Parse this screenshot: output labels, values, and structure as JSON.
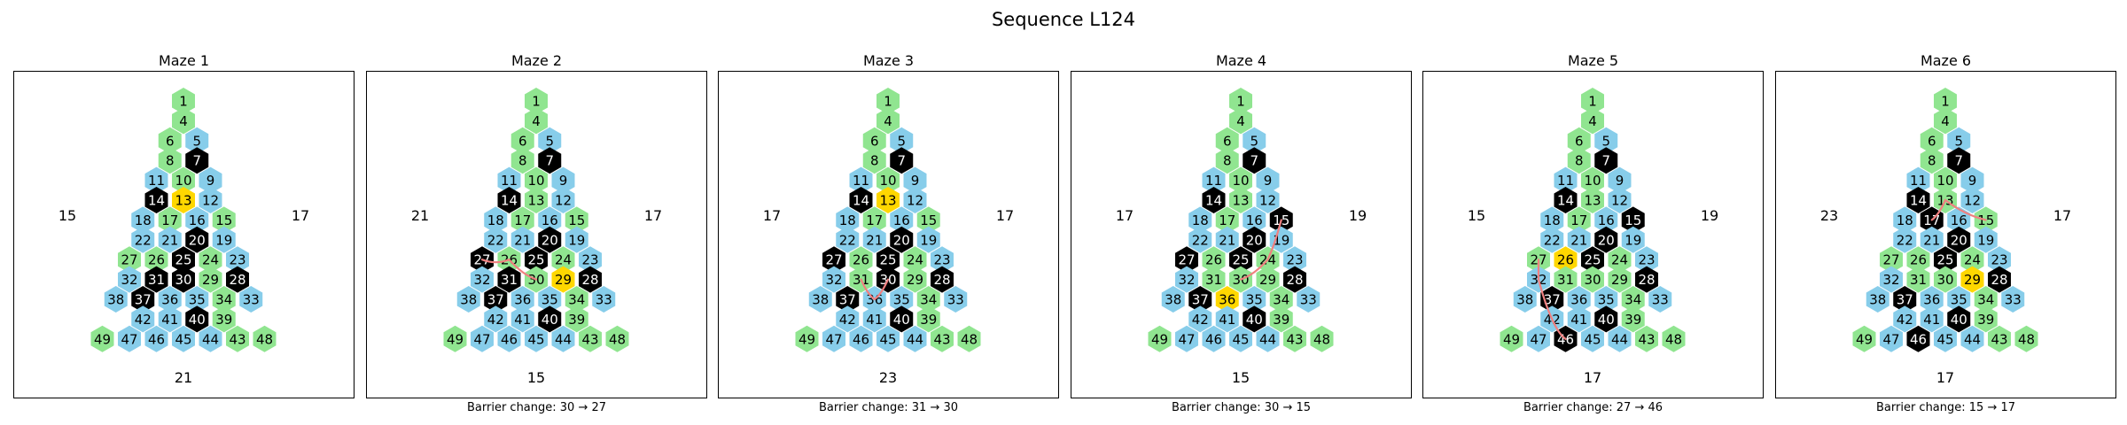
{
  "title": "Sequence L124",
  "colors": {
    "open": "#90e590",
    "blue": "#87cdea",
    "barrier": "#000000",
    "goal": "#ffd700",
    "path": "#f08080",
    "label": "#000000",
    "label_on_black": "#ffffff"
  },
  "blue_cells": [
    5,
    9,
    11,
    12,
    16,
    18,
    19,
    21,
    22,
    23,
    32,
    33,
    35,
    36,
    38,
    41,
    42,
    44,
    45,
    46,
    47
  ],
  "rows": [
    [
      1
    ],
    [
      4
    ],
    [
      6,
      5
    ],
    [
      8,
      7
    ],
    [
      11,
      10,
      9
    ],
    [
      14,
      13,
      12
    ],
    [
      18,
      17,
      16,
      15
    ],
    [
      22,
      21,
      20,
      19
    ],
    [
      27,
      26,
      25,
      24,
      23
    ],
    [
      32,
      31,
      30,
      29,
      28
    ],
    [
      38,
      37,
      36,
      35,
      34,
      33
    ],
    [
      42,
      41,
      40,
      39
    ],
    [
      49,
      47,
      46,
      45,
      44,
      43,
      48
    ]
  ],
  "mazes": [
    {
      "title": "Maze 1",
      "caption": "",
      "left_label": "15",
      "right_label": "17",
      "bottom_label": "21",
      "goal": [
        13
      ],
      "barriers": [
        7,
        14,
        20,
        25,
        28,
        30,
        31,
        37,
        40
      ],
      "path": []
    },
    {
      "title": "Maze 2",
      "caption": "Barrier change: 30 → 27",
      "left_label": "21",
      "right_label": "17",
      "bottom_label": "15",
      "goal": [
        29
      ],
      "barriers": [
        7,
        14,
        20,
        25,
        27,
        28,
        31,
        37,
        40
      ],
      "path": [
        27,
        26,
        30
      ]
    },
    {
      "title": "Maze 3",
      "caption": "Barrier change: 31 → 30",
      "left_label": "17",
      "right_label": "17",
      "bottom_label": "23",
      "goal": [
        13
      ],
      "barriers": [
        7,
        14,
        20,
        25,
        27,
        28,
        30,
        37,
        40
      ],
      "path": [
        31,
        36,
        30
      ]
    },
    {
      "title": "Maze 4",
      "caption": "Barrier change: 30 → 15",
      "left_label": "17",
      "right_label": "19",
      "bottom_label": "15",
      "goal": [
        36
      ],
      "barriers": [
        7,
        14,
        15,
        20,
        25,
        27,
        28,
        37,
        40
      ],
      "path": [
        30,
        24,
        15
      ]
    },
    {
      "title": "Maze 5",
      "caption": "Barrier change: 27 → 46",
      "left_label": "15",
      "right_label": "19",
      "bottom_label": "17",
      "goal": [
        26
      ],
      "barriers": [
        7,
        14,
        15,
        20,
        25,
        28,
        37,
        40,
        46
      ],
      "path": [
        27,
        32,
        42,
        46
      ]
    },
    {
      "title": "Maze 6",
      "caption": "Barrier change: 15 → 17",
      "left_label": "23",
      "right_label": "17",
      "bottom_label": "17",
      "goal": [
        29
      ],
      "barriers": [
        7,
        14,
        17,
        20,
        25,
        28,
        37,
        40,
        46
      ],
      "path": [
        17,
        13,
        15
      ]
    }
  ]
}
